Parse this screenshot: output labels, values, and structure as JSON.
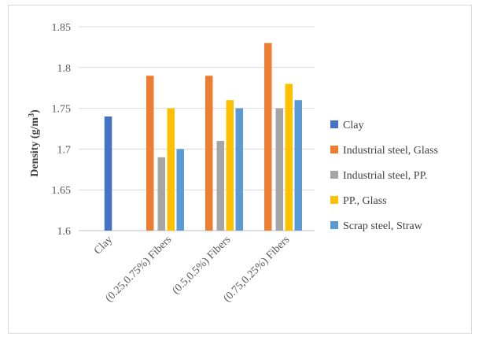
{
  "chart_data": {
    "type": "bar",
    "title": "",
    "xlabel": "",
    "ylabel": "Density (g/m",
    "ylabel_sup": "3",
    "ylabel_close": ")",
    "ylim": [
      1.6,
      1.85
    ],
    "yticks": [
      "1.6",
      "1.65",
      "1.7",
      "1.75",
      "1.8",
      "1.85"
    ],
    "ytick_values": [
      1.6,
      1.65,
      1.7,
      1.75,
      1.8,
      1.85
    ],
    "grid": true,
    "legend_position": "right",
    "categories": [
      "Clay",
      "(0.25,0.75%) Fibers",
      "(0.5,0.5%) Fibers",
      "(0.75,0.25%) Fibers"
    ],
    "series": [
      {
        "name": "Clay",
        "color": "#4472c4",
        "values": [
          1.74,
          null,
          null,
          null
        ]
      },
      {
        "name": "Industrial steel, Glass",
        "color": "#ed7d31",
        "values": [
          null,
          1.79,
          1.79,
          1.83
        ]
      },
      {
        "name": "Industrial steel, PP.",
        "color": "#a5a5a5",
        "values": [
          null,
          1.69,
          1.71,
          1.75
        ]
      },
      {
        "name": "PP., Glass",
        "color": "#ffc000",
        "values": [
          null,
          1.75,
          1.76,
          1.78
        ]
      },
      {
        "name": "Scrap steel, Straw",
        "color": "#5b9bd5",
        "values": [
          null,
          1.7,
          1.75,
          1.76
        ]
      }
    ]
  }
}
